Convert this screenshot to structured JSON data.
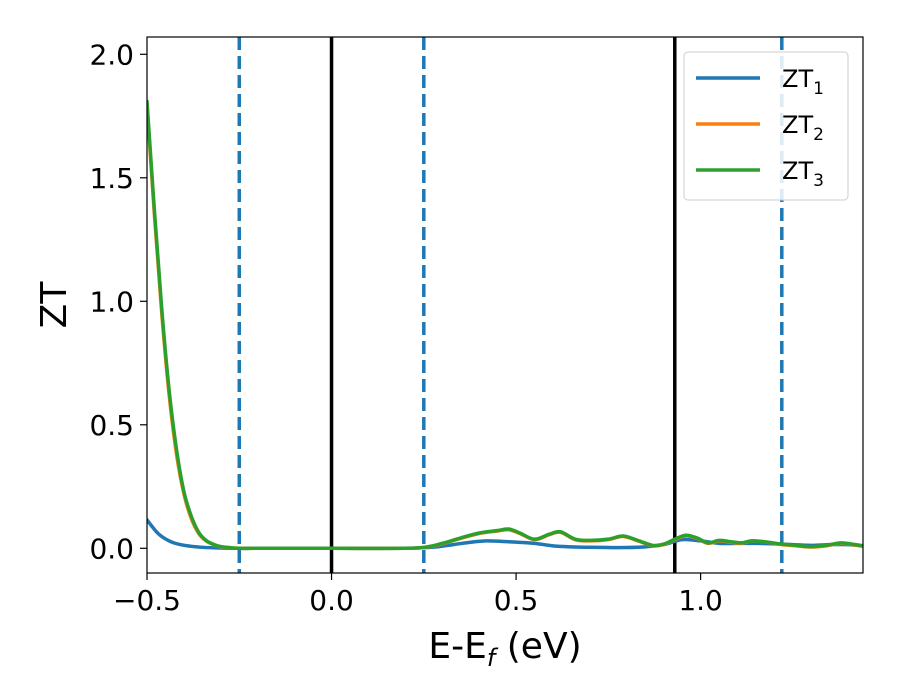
{
  "chart_data": {
    "type": "line",
    "title": "",
    "xlabel": "E-E",
    "xlabel_sub": "f",
    "xlabel_unit": " (eV)",
    "ylabel": "ZT",
    "xlim": [
      -0.5,
      1.44
    ],
    "ylim": [
      -0.1,
      2.07
    ],
    "xticks": [
      -0.5,
      0.0,
      0.5,
      1.0
    ],
    "xtick_labels": [
      "−0.5",
      "0.0",
      "0.5",
      "1.0"
    ],
    "yticks": [
      0.0,
      0.5,
      1.0,
      1.5,
      2.0
    ],
    "ytick_labels": [
      "0.0",
      "0.5",
      "1.0",
      "1.5",
      "2.0"
    ],
    "grid": false,
    "legend_position": "top-right",
    "vertical_lines": [
      {
        "x": -0.25,
        "style": "dashed",
        "color": "#1f77b4"
      },
      {
        "x": 0.0,
        "style": "solid",
        "color": "#000000"
      },
      {
        "x": 0.25,
        "style": "dashed",
        "color": "#1f77b4"
      },
      {
        "x": 0.93,
        "style": "solid",
        "color": "#000000"
      },
      {
        "x": 1.22,
        "style": "dashed",
        "color": "#1f77b4"
      }
    ],
    "series": [
      {
        "name": "ZT",
        "name_sub": "1",
        "color": "#1f77b4",
        "x": [
          -0.5,
          -0.47,
          -0.44,
          -0.41,
          -0.38,
          -0.35,
          -0.3,
          -0.25,
          -0.2,
          0.0,
          0.2,
          0.28,
          0.33,
          0.38,
          0.42,
          0.46,
          0.5,
          0.55,
          0.6,
          0.65,
          0.7,
          0.75,
          0.8,
          0.85,
          0.9,
          0.95,
          1.0,
          1.05,
          1.1,
          1.15,
          1.2,
          1.25,
          1.3,
          1.35,
          1.4,
          1.44
        ],
        "y": [
          0.115,
          0.06,
          0.03,
          0.015,
          0.008,
          0.004,
          0.001,
          0.0,
          0.0,
          0.0,
          0.0,
          0.005,
          0.015,
          0.025,
          0.03,
          0.028,
          0.025,
          0.02,
          0.01,
          0.006,
          0.004,
          0.003,
          0.003,
          0.006,
          0.015,
          0.035,
          0.03,
          0.02,
          0.02,
          0.02,
          0.018,
          0.015,
          0.012,
          0.015,
          0.015,
          0.01
        ]
      },
      {
        "name": "ZT",
        "name_sub": "2",
        "color": "#ff7f0e",
        "x": [
          -0.5,
          -0.48,
          -0.46,
          -0.44,
          -0.42,
          -0.4,
          -0.38,
          -0.36,
          -0.34,
          -0.32,
          -0.3,
          -0.27,
          -0.25,
          -0.2,
          0.0,
          0.2,
          0.26,
          0.3,
          0.35,
          0.4,
          0.45,
          0.48,
          0.51,
          0.55,
          0.59,
          0.62,
          0.66,
          0.7,
          0.75,
          0.79,
          0.83,
          0.87,
          0.9,
          0.93,
          0.96,
          0.99,
          1.02,
          1.05,
          1.08,
          1.11,
          1.14,
          1.18,
          1.22,
          1.26,
          1.3,
          1.34,
          1.38,
          1.41,
          1.44
        ],
        "y": [
          1.8,
          1.35,
          0.95,
          0.62,
          0.38,
          0.22,
          0.12,
          0.06,
          0.03,
          0.015,
          0.006,
          0.002,
          0.0,
          0.0,
          0.0,
          0.0,
          0.005,
          0.018,
          0.04,
          0.06,
          0.07,
          0.075,
          0.06,
          0.035,
          0.055,
          0.065,
          0.035,
          0.03,
          0.035,
          0.048,
          0.03,
          0.01,
          0.015,
          0.035,
          0.05,
          0.04,
          0.02,
          0.03,
          0.025,
          0.02,
          0.03,
          0.025,
          0.015,
          0.01,
          0.005,
          0.01,
          0.02,
          0.015,
          0.008
        ]
      },
      {
        "name": "ZT",
        "name_sub": "3",
        "color": "#2ca02c",
        "x": [
          -0.5,
          -0.48,
          -0.46,
          -0.44,
          -0.42,
          -0.4,
          -0.38,
          -0.36,
          -0.34,
          -0.32,
          -0.3,
          -0.27,
          -0.25,
          -0.2,
          0.0,
          0.2,
          0.26,
          0.3,
          0.35,
          0.4,
          0.45,
          0.48,
          0.51,
          0.55,
          0.59,
          0.62,
          0.66,
          0.7,
          0.75,
          0.79,
          0.83,
          0.87,
          0.9,
          0.93,
          0.96,
          0.99,
          1.02,
          1.05,
          1.08,
          1.11,
          1.14,
          1.18,
          1.22,
          1.26,
          1.3,
          1.34,
          1.38,
          1.41,
          1.44
        ],
        "y": [
          1.81,
          1.37,
          0.97,
          0.64,
          0.4,
          0.23,
          0.13,
          0.065,
          0.032,
          0.016,
          0.007,
          0.002,
          0.0,
          0.0,
          0.0,
          0.0,
          0.006,
          0.02,
          0.042,
          0.062,
          0.072,
          0.078,
          0.062,
          0.037,
          0.057,
          0.067,
          0.037,
          0.032,
          0.037,
          0.05,
          0.032,
          0.012,
          0.017,
          0.037,
          0.053,
          0.042,
          0.022,
          0.032,
          0.027,
          0.022,
          0.03,
          0.025,
          0.017,
          0.012,
          0.007,
          0.012,
          0.022,
          0.017,
          0.01
        ]
      }
    ]
  }
}
